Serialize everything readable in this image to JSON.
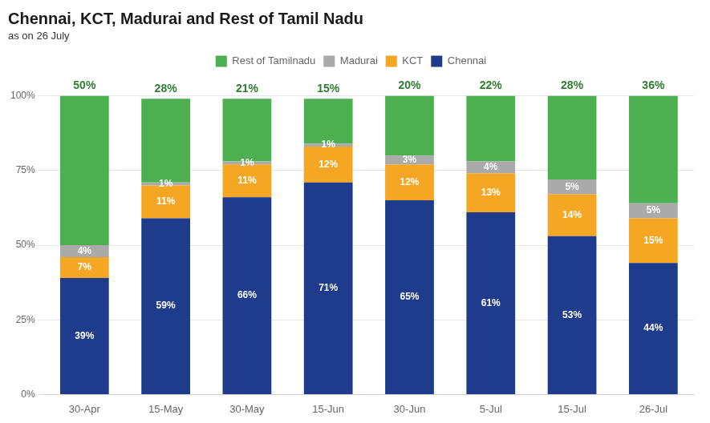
{
  "chart_data": {
    "type": "bar",
    "title": "Chennai, KCT, Madurai and Rest of Tamil Nadu",
    "subtitle": "as on 26 July",
    "categories": [
      "30-Apr",
      "15-May",
      "30-May",
      "15-Jun",
      "30-Jun",
      "5-Jul",
      "15-Jul",
      "26-Jul"
    ],
    "series": [
      {
        "name": "Chennai",
        "color": "#1f3b8c",
        "values": [
          39,
          59,
          66,
          71,
          65,
          61,
          53,
          44
        ],
        "value_labels": [
          "39%",
          "59%",
          "66%",
          "71%",
          "65%",
          "61%",
          "53%",
          "44%"
        ]
      },
      {
        "name": "KCT",
        "color": "#f5a623",
        "values": [
          7,
          11,
          11,
          12,
          12,
          13,
          14,
          15
        ],
        "value_labels": [
          "7%",
          "11%",
          "11%",
          "12%",
          "12%",
          "13%",
          "14%",
          "15%"
        ]
      },
      {
        "name": "Madurai",
        "color": "#aaaaaa",
        "values": [
          4,
          1,
          1,
          1,
          3,
          4,
          5,
          5
        ],
        "value_labels": [
          "4%",
          "1%",
          "1%",
          "1%",
          "3%",
          "4%",
          "5%",
          "5%"
        ]
      },
      {
        "name": "Rest of Tamilnadu",
        "color": "#4caf50",
        "values": [
          50,
          28,
          21,
          15,
          20,
          22,
          28,
          36
        ],
        "value_labels": [
          "50%",
          "28%",
          "21%",
          "15%",
          "20%",
          "22%",
          "28%",
          "36%"
        ]
      }
    ],
    "stacked": true,
    "data_labels": true,
    "ylim": [
      0,
      100
    ],
    "yticks": [
      {
        "value": 0,
        "label": "0%"
      },
      {
        "value": 25,
        "label": "25%"
      },
      {
        "value": 50,
        "label": "50%"
      },
      {
        "value": 75,
        "label": "75%"
      },
      {
        "value": 100,
        "label": "100%"
      }
    ],
    "grid": true,
    "legend": "top"
  }
}
